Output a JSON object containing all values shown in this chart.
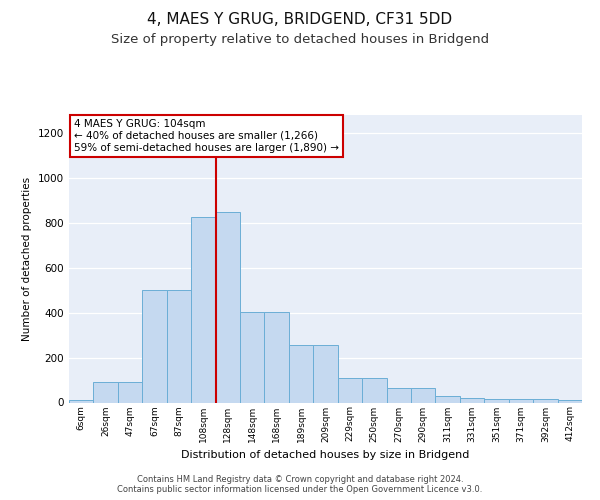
{
  "title": "4, MAES Y GRUG, BRIDGEND, CF31 5DD",
  "subtitle": "Size of property relative to detached houses in Bridgend",
  "xlabel": "Distribution of detached houses by size in Bridgend",
  "ylabel": "Number of detached properties",
  "bar_labels": [
    "6sqm",
    "26sqm",
    "47sqm",
    "67sqm",
    "87sqm",
    "108sqm",
    "128sqm",
    "148sqm",
    "168sqm",
    "189sqm",
    "209sqm",
    "229sqm",
    "250sqm",
    "270sqm",
    "290sqm",
    "311sqm",
    "331sqm",
    "351sqm",
    "371sqm",
    "392sqm",
    "412sqm"
  ],
  "bar_values": [
    10,
    90,
    90,
    500,
    500,
    825,
    850,
    405,
    405,
    255,
    255,
    110,
    110,
    65,
    65,
    30,
    20,
    15,
    15,
    15,
    10
  ],
  "bar_color": "#c5d9f0",
  "bar_edge_color": "#6baed6",
  "vline_x": 5.5,
  "vline_color": "#cc0000",
  "ylim": [
    0,
    1280
  ],
  "annotation_text": "4 MAES Y GRUG: 104sqm\n← 40% of detached houses are smaller (1,266)\n59% of semi-detached houses are larger (1,890) →",
  "annotation_box_color": "#ffffff",
  "annotation_box_edge": "#cc0000",
  "footnote": "Contains HM Land Registry data © Crown copyright and database right 2024.\nContains public sector information licensed under the Open Government Licence v3.0.",
  "background_color": "#e8eef8",
  "fig_background": "#ffffff",
  "title_fontsize": 11,
  "subtitle_fontsize": 9.5
}
